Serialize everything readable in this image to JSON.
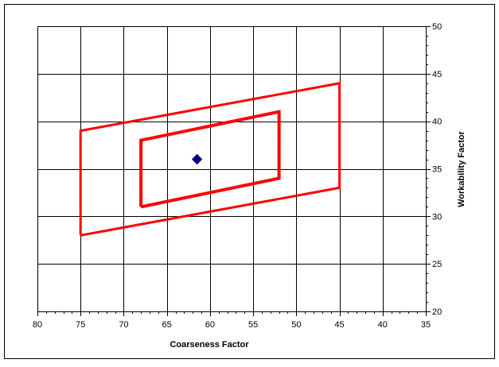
{
  "chart_data": {
    "type": "scatter",
    "x_reversed": true,
    "xlabel": "Coarseness Factor",
    "ylabel": "Workability Factor",
    "xlim": [
      35,
      80
    ],
    "ylim": [
      20,
      50
    ],
    "x_ticks": [
      80,
      75,
      70,
      65,
      60,
      55,
      50,
      45,
      40,
      35
    ],
    "y_ticks": [
      20,
      25,
      30,
      35,
      40,
      45,
      50
    ],
    "y_axis_side": "right",
    "grid": true,
    "legend": "none",
    "series": [
      {
        "kind": "polygon",
        "color": "#ff0000",
        "points": [
          [
            75,
            28
          ],
          [
            75,
            39
          ],
          [
            45,
            44
          ],
          [
            45,
            33
          ],
          [
            75,
            28
          ]
        ]
      },
      {
        "kind": "polygon",
        "color": "#ff0000",
        "points": [
          [
            68,
            31
          ],
          [
            68,
            38
          ],
          [
            52,
            41
          ],
          [
            52,
            34
          ],
          [
            68,
            31
          ]
        ]
      },
      {
        "kind": "marker",
        "marker": "diamond",
        "color": "#000080",
        "points": [
          [
            61.5,
            36
          ]
        ]
      }
    ]
  }
}
